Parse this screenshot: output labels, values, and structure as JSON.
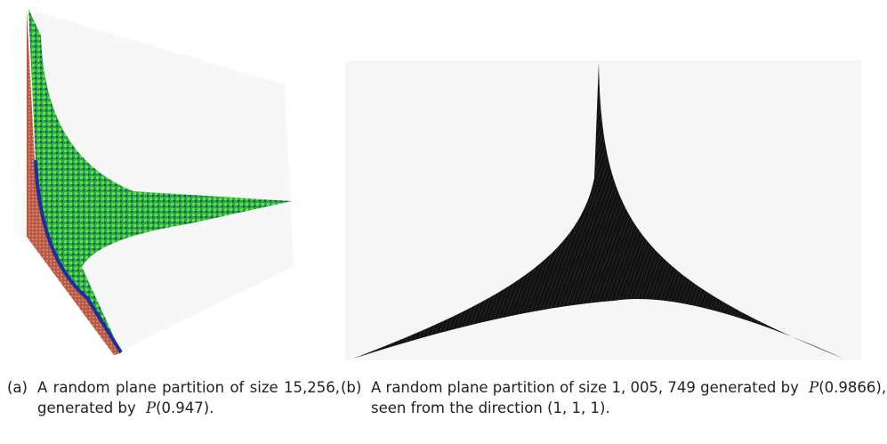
{
  "figures": [
    {
      "label": "(a)",
      "caption": [
        "A random plane partition of size 15,256, generated by",
        "P",
        "(0.947)."
      ]
    },
    {
      "label": "(b)",
      "caption": [
        "A random plane partition of size 1, 005, 749 generated by",
        "P",
        "(0.9866), seen from the direction (1, 1, 1)."
      ]
    }
  ]
}
